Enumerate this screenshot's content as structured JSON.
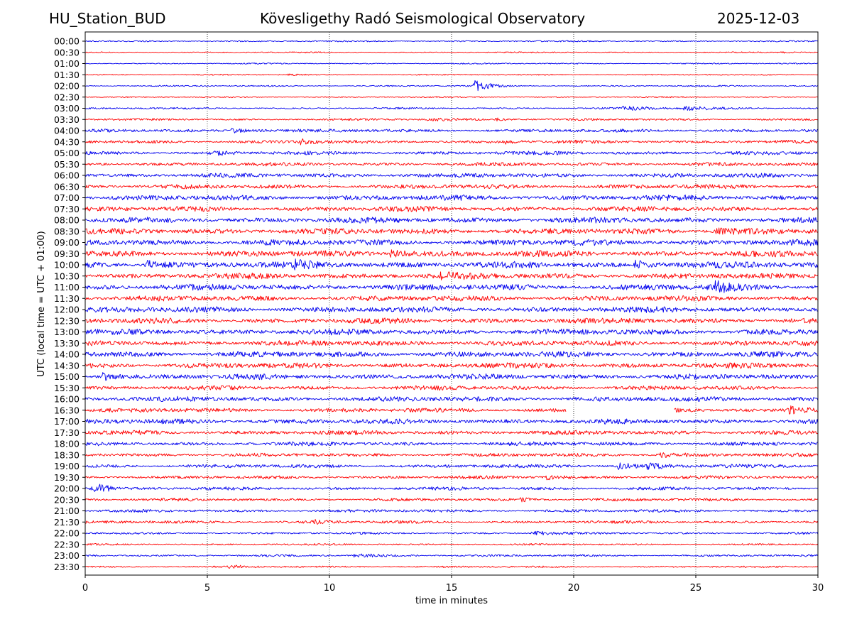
{
  "header": {
    "station": "HU_Station_BUD",
    "title": "Kövesligethy Radó Seismological Observatory",
    "date": "2025-12-03"
  },
  "chart_data": {
    "type": "helicorder",
    "title": "Kövesligethy Radó Seismological Observatory",
    "xlabel": "time in minutes",
    "ylabel": "UTC (local time = UTC + 01:00)",
    "xlim": [
      0,
      30
    ],
    "xticks": [
      0,
      5,
      10,
      15,
      20,
      25,
      30
    ],
    "grid": "vertical dotted at each x tick",
    "colors": [
      "#0000ee",
      "#ff0000"
    ],
    "rows": [
      {
        "label": "00:00",
        "noise": 0.4,
        "events": []
      },
      {
        "label": "00:30",
        "noise": 0.35,
        "events": [
          {
            "t": 28.5,
            "amp": 0.5,
            "dur": 0.4
          }
        ]
      },
      {
        "label": "01:00",
        "noise": 0.35,
        "events": []
      },
      {
        "label": "01:30",
        "noise": 0.35,
        "events": [
          {
            "t": 8.3,
            "amp": 0.8,
            "dur": 0.3
          }
        ]
      },
      {
        "label": "02:00",
        "noise": 0.4,
        "events": [
          {
            "t": 15.95,
            "amp": 4.0,
            "dur": 0.5
          }
        ]
      },
      {
        "label": "02:30",
        "noise": 0.35,
        "events": []
      },
      {
        "label": "03:00",
        "noise": 0.5,
        "events": [
          {
            "t": 22.0,
            "amp": 1.2,
            "dur": 1.2
          },
          {
            "t": 24.5,
            "amp": 1.2,
            "dur": 1.2
          }
        ]
      },
      {
        "label": "03:30",
        "noise": 0.6,
        "events": [
          {
            "t": 14.0,
            "amp": 1.0,
            "dur": 1.0
          },
          {
            "t": 16.8,
            "amp": 1.0,
            "dur": 0.6
          }
        ]
      },
      {
        "label": "04:00",
        "noise": 0.9,
        "events": [
          {
            "t": 6.0,
            "amp": 1.5,
            "dur": 0.8
          }
        ]
      },
      {
        "label": "04:30",
        "noise": 0.9,
        "events": [
          {
            "t": 8.8,
            "amp": 1.6,
            "dur": 0.5
          },
          {
            "t": 17.2,
            "amp": 1.4,
            "dur": 0.4
          }
        ]
      },
      {
        "label": "05:00",
        "noise": 1.0,
        "events": [
          {
            "t": 5.3,
            "amp": 1.5,
            "dur": 0.4
          }
        ]
      },
      {
        "label": "05:30",
        "noise": 1.0,
        "events": []
      },
      {
        "label": "06:00",
        "noise": 1.2,
        "events": []
      },
      {
        "label": "06:30",
        "noise": 1.2,
        "events": []
      },
      {
        "label": "07:00",
        "noise": 1.5,
        "events": []
      },
      {
        "label": "07:30",
        "noise": 1.4,
        "events": []
      },
      {
        "label": "08:00",
        "noise": 1.6,
        "events": []
      },
      {
        "label": "08:30",
        "noise": 1.6,
        "events": [
          {
            "t": 25.8,
            "amp": 2.0,
            "dur": 1.0
          }
        ]
      },
      {
        "label": "09:00",
        "noise": 1.7,
        "events": []
      },
      {
        "label": "09:30",
        "noise": 1.7,
        "events": [
          {
            "t": 12.5,
            "amp": 2.0,
            "dur": 1.0
          }
        ]
      },
      {
        "label": "10:00",
        "noise": 1.8,
        "events": [
          {
            "t": 2.5,
            "amp": 2.4,
            "dur": 0.6
          },
          {
            "t": 8.5,
            "amp": 2.0,
            "dur": 1.0
          },
          {
            "t": 22.5,
            "amp": 2.0,
            "dur": 1.0
          }
        ]
      },
      {
        "label": "10:30",
        "noise": 1.6,
        "events": [
          {
            "t": 14.5,
            "amp": 1.8,
            "dur": 0.7
          }
        ]
      },
      {
        "label": "11:00",
        "noise": 1.7,
        "events": [
          {
            "t": 25.8,
            "amp": 3.2,
            "dur": 0.6
          }
        ]
      },
      {
        "label": "11:30",
        "noise": 1.5,
        "events": []
      },
      {
        "label": "12:00",
        "noise": 1.6,
        "events": []
      },
      {
        "label": "12:30",
        "noise": 1.5,
        "events": []
      },
      {
        "label": "13:00",
        "noise": 1.6,
        "events": []
      },
      {
        "label": "13:30",
        "noise": 1.5,
        "events": []
      },
      {
        "label": "14:00",
        "noise": 1.6,
        "events": []
      },
      {
        "label": "14:30",
        "noise": 1.5,
        "events": []
      },
      {
        "label": "15:00",
        "noise": 1.5,
        "events": [
          {
            "t": 0.7,
            "amp": 2.4,
            "dur": 0.5
          }
        ]
      },
      {
        "label": "15:30",
        "noise": 1.2,
        "events": []
      },
      {
        "label": "16:00",
        "noise": 1.4,
        "events": []
      },
      {
        "label": "16:30",
        "noise": 1.2,
        "events": [
          {
            "t": 28.8,
            "amp": 2.5,
            "dur": 0.8
          }
        ],
        "gap": [
          19.7,
          24.1
        ]
      },
      {
        "label": "17:00",
        "noise": 1.4,
        "events": []
      },
      {
        "label": "17:30",
        "noise": 1.2,
        "events": []
      },
      {
        "label": "18:00",
        "noise": 1.1,
        "events": []
      },
      {
        "label": "18:30",
        "noise": 1.0,
        "events": [
          {
            "t": 23.5,
            "amp": 1.4,
            "dur": 0.8
          }
        ]
      },
      {
        "label": "19:00",
        "noise": 1.0,
        "events": [
          {
            "t": 21.8,
            "amp": 2.0,
            "dur": 0.8
          },
          {
            "t": 23.0,
            "amp": 1.6,
            "dur": 0.8
          }
        ]
      },
      {
        "label": "19:30",
        "noise": 0.9,
        "events": [
          {
            "t": 18.9,
            "amp": 1.6,
            "dur": 0.6
          }
        ]
      },
      {
        "label": "20:00",
        "noise": 0.9,
        "events": [
          {
            "t": 0.2,
            "amp": 3.0,
            "dur": 0.3
          },
          {
            "t": 0.6,
            "amp": 2.5,
            "dur": 0.4
          }
        ]
      },
      {
        "label": "20:30",
        "noise": 0.8,
        "events": [
          {
            "t": 17.8,
            "amp": 1.2,
            "dur": 0.5
          }
        ]
      },
      {
        "label": "21:00",
        "noise": 0.8,
        "events": []
      },
      {
        "label": "21:30",
        "noise": 0.8,
        "events": [
          {
            "t": 9.3,
            "amp": 1.3,
            "dur": 0.6
          }
        ]
      },
      {
        "label": "22:00",
        "noise": 0.6,
        "events": [
          {
            "t": 18.3,
            "amp": 1.3,
            "dur": 0.8
          }
        ]
      },
      {
        "label": "22:30",
        "noise": 0.5,
        "events": []
      },
      {
        "label": "23:00",
        "noise": 0.6,
        "events": [
          {
            "t": 11.0,
            "amp": 0.9,
            "dur": 1.2
          }
        ]
      },
      {
        "label": "23:30",
        "noise": 0.5,
        "events": [
          {
            "t": 5.9,
            "amp": 1.1,
            "dur": 0.5
          }
        ]
      }
    ]
  }
}
